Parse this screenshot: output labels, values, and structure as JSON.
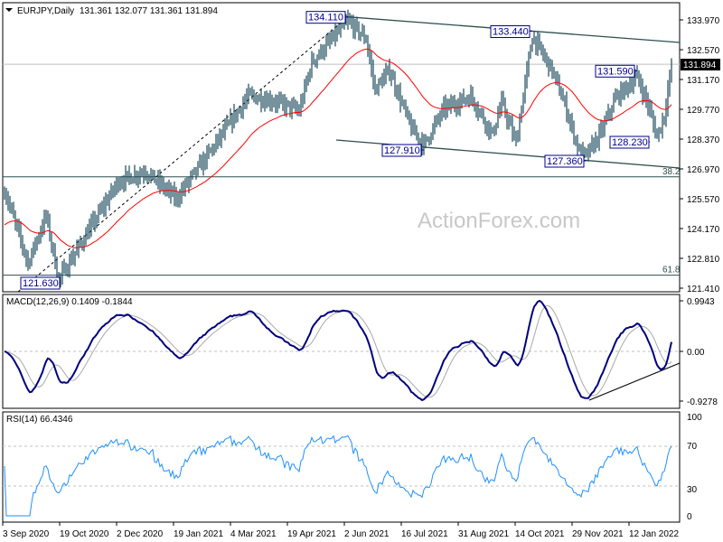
{
  "header": {
    "symbol": "EURJPY,Daily",
    "ohlc": "131.361 132.077 131.361 131.894",
    "current_price": "131.894"
  },
  "watermark": "ActionForex.com",
  "chart_data": [
    {
      "type": "ohlc-bar",
      "title": "EURJPY,Daily",
      "ylim": [
        121.41,
        133.97
      ],
      "y_ticks": [
        "133.970",
        "132.570",
        "131.170",
        "129.770",
        "128.370",
        "126.970",
        "125.570",
        "124.170",
        "122.810",
        "121.410"
      ],
      "x_ticks": [
        "3 Sep 2020",
        "19 Oct 2020",
        "2 Dec 2020",
        "19 Jan 2021",
        "4 Mar 2021",
        "19 Apr 2021",
        "2 Jun 2021",
        "16 Jul 2021",
        "31 Aug 2021",
        "14 Oct 2021",
        "29 Nov 2021",
        "12 Jan 2022"
      ],
      "last_close": 131.894,
      "price_path": [
        [
          0,
          126.0
        ],
        [
          13,
          122.6
        ],
        [
          23,
          124.8
        ],
        [
          30,
          121.8
        ],
        [
          48,
          124.3
        ],
        [
          63,
          126.4
        ],
        [
          78,
          126.9
        ],
        [
          95,
          125.6
        ],
        [
          113,
          127.7
        ],
        [
          135,
          130.4
        ],
        [
          148,
          130.2
        ],
        [
          163,
          129.7
        ],
        [
          170,
          132.0
        ],
        [
          190,
          133.9
        ],
        [
          200,
          133.1
        ],
        [
          205,
          130.7
        ],
        [
          213,
          131.6
        ],
        [
          225,
          128.9
        ],
        [
          232,
          128.1
        ],
        [
          243,
          129.8
        ],
        [
          258,
          130.4
        ],
        [
          270,
          128.6
        ],
        [
          275,
          130.1
        ],
        [
          283,
          128.2
        ],
        [
          292,
          133.2
        ],
        [
          303,
          131.6
        ],
        [
          310,
          130.0
        ],
        [
          318,
          127.8
        ],
        [
          322,
          127.6
        ],
        [
          330,
          128.7
        ],
        [
          338,
          130.3
        ],
        [
          350,
          131.3
        ],
        [
          356,
          130.0
        ],
        [
          361,
          128.5
        ],
        [
          365,
          129.5
        ],
        [
          369,
          131.9
        ]
      ],
      "swing_labels": [
        {
          "text": "134.110",
          "price": 134.11,
          "bar": 190
        },
        {
          "text": "133.440",
          "price": 133.44,
          "bar": 292
        },
        {
          "text": "131.590",
          "price": 131.59,
          "bar": 350
        },
        {
          "text": "127.910",
          "price": 127.91,
          "bar": 232
        },
        {
          "text": "127.360",
          "price": 127.36,
          "bar": 322
        },
        {
          "text": "128.230",
          "price": 128.23,
          "bar": 357
        },
        {
          "text": "121.630",
          "price": 121.63,
          "bar": 31
        }
      ],
      "fib_levels": [
        {
          "text": "38.2",
          "price": 126.62
        },
        {
          "text": "61.8",
          "price": 122.02
        }
      ],
      "moving_average_color": "#ff0000",
      "bar_color": "#1b4a5c"
    },
    {
      "type": "line",
      "title": "MACD(12,26,9) 0.1409 -0.1844",
      "y_ticks": [
        "0.9943",
        "0.00",
        "-0.9278"
      ],
      "ylim": [
        -0.9278,
        0.9943
      ],
      "series": [
        {
          "name": "MACD",
          "color": "#00007f"
        },
        {
          "name": "Signal",
          "color": "#a9a9a9"
        }
      ]
    },
    {
      "type": "line",
      "title": "RSI(14) 66.4346",
      "y_ticks": [
        "100",
        "70",
        "30",
        "0"
      ],
      "ylim": [
        0,
        100
      ],
      "levels": [
        70,
        30
      ],
      "series": [
        {
          "name": "RSI",
          "color": "#1e90ff"
        }
      ]
    }
  ]
}
